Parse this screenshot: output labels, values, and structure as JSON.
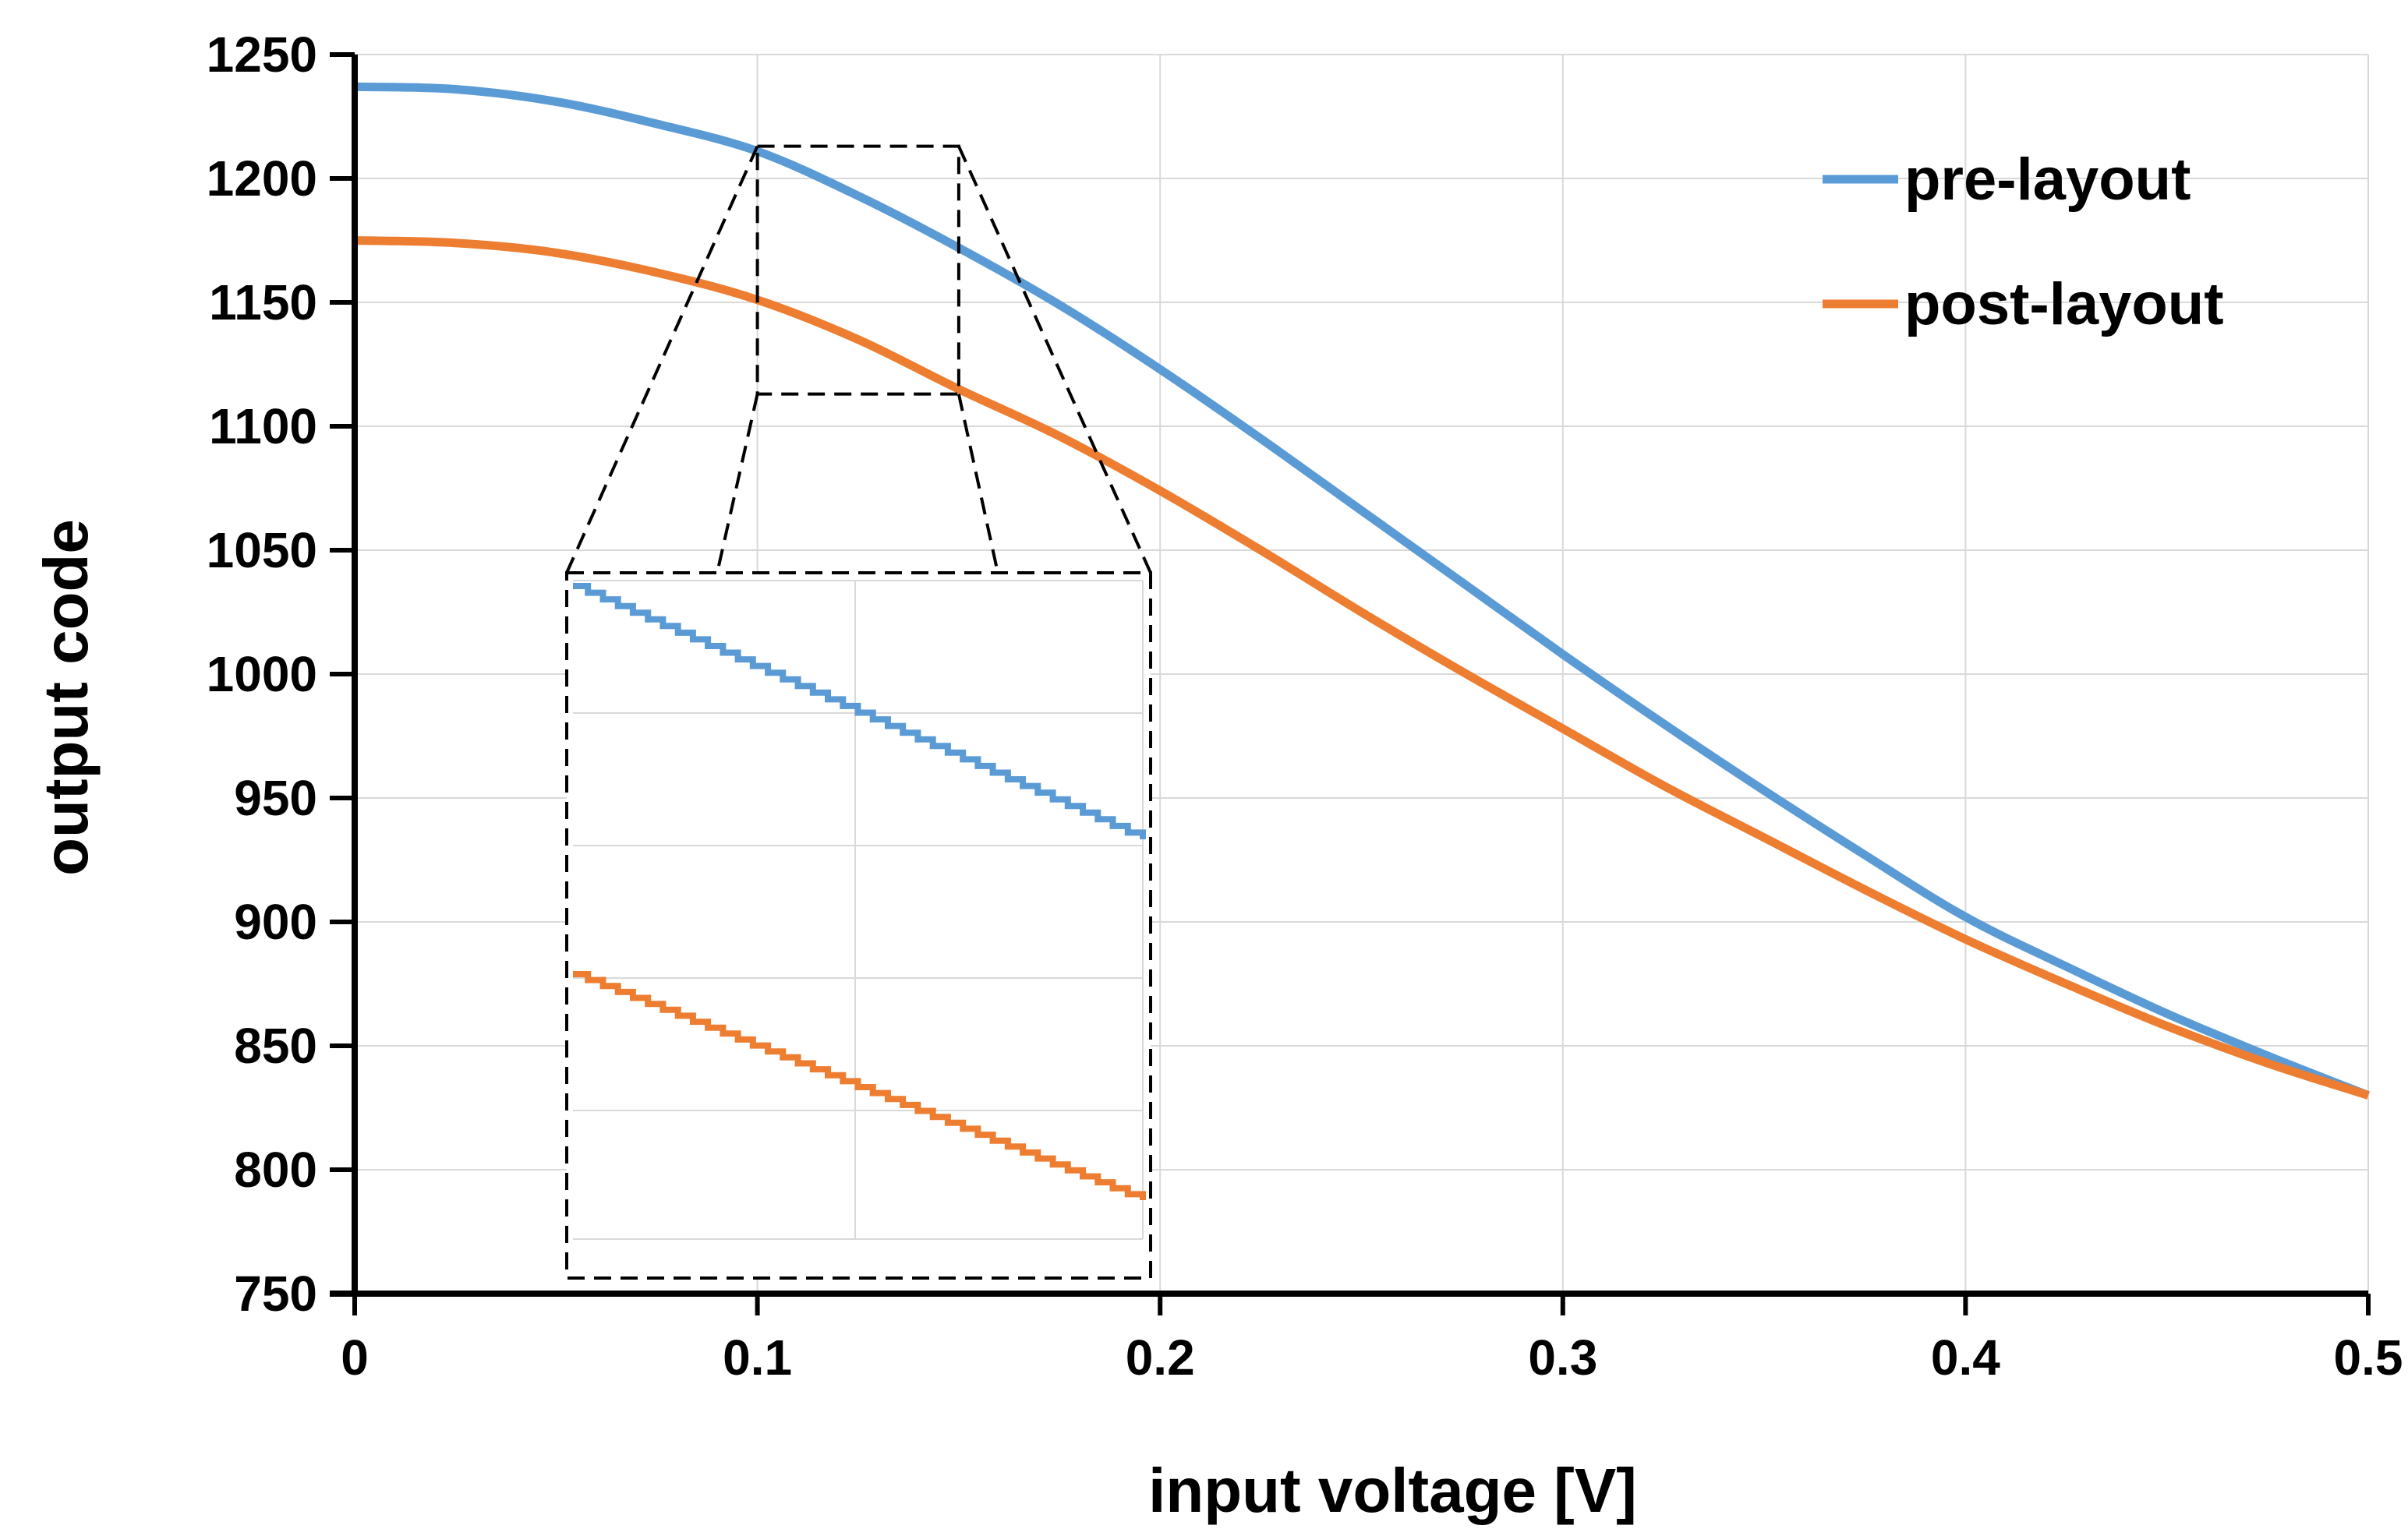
{
  "chart_data": {
    "type": "line",
    "title": "",
    "xlabel": "input voltage [V]",
    "ylabel": "output code",
    "xlim": [
      0,
      0.5
    ],
    "ylim": [
      750,
      1250
    ],
    "x_ticks": [
      0,
      0.1,
      0.2,
      0.3,
      0.4,
      0.5
    ],
    "x_tick_labels": [
      "0",
      "0.1",
      "0.2",
      "0.3",
      "0.4",
      "0.5"
    ],
    "y_ticks": [
      750,
      800,
      850,
      900,
      950,
      1000,
      1050,
      1100,
      1150,
      1200,
      1250
    ],
    "y_tick_labels": [
      "750",
      "800",
      "850",
      "900",
      "950",
      "1000",
      "1050",
      "1100",
      "1150",
      "1200",
      "1250"
    ],
    "grid": true,
    "legend_position": "top-right",
    "series": [
      {
        "name": "pre-layout",
        "color": "#5B9BD5",
        "x": [
          0,
          0.025,
          0.05,
          0.075,
          0.1,
          0.125,
          0.15,
          0.175,
          0.2,
          0.225,
          0.25,
          0.275,
          0.3,
          0.325,
          0.35,
          0.375,
          0.4,
          0.425,
          0.45,
          0.475,
          0.5
        ],
        "values": [
          1237,
          1236,
          1231,
          1222,
          1211,
          1193,
          1172,
          1149,
          1123,
          1095,
          1066,
          1037,
          1008,
          980,
          953,
          927,
          902,
          882,
          863,
          846,
          830
        ]
      },
      {
        "name": "post-layout",
        "color": "#ED7D31",
        "x": [
          0,
          0.025,
          0.05,
          0.075,
          0.1,
          0.125,
          0.15,
          0.175,
          0.2,
          0.225,
          0.25,
          0.275,
          0.3,
          0.325,
          0.35,
          0.375,
          0.4,
          0.425,
          0.45,
          0.475,
          0.5
        ],
        "values": [
          1175,
          1174,
          1170,
          1162,
          1151,
          1135,
          1115,
          1096,
          1074,
          1050,
          1025,
          1001,
          978,
          955,
          934,
          913,
          893,
          875,
          858,
          843,
          830
        ]
      }
    ],
    "inset": {
      "description_source": "zoom region",
      "x_range": [
        0.1,
        0.15
      ],
      "y_range": [
        1113,
        1213
      ],
      "note": "magnified staircase view of both curves"
    }
  }
}
